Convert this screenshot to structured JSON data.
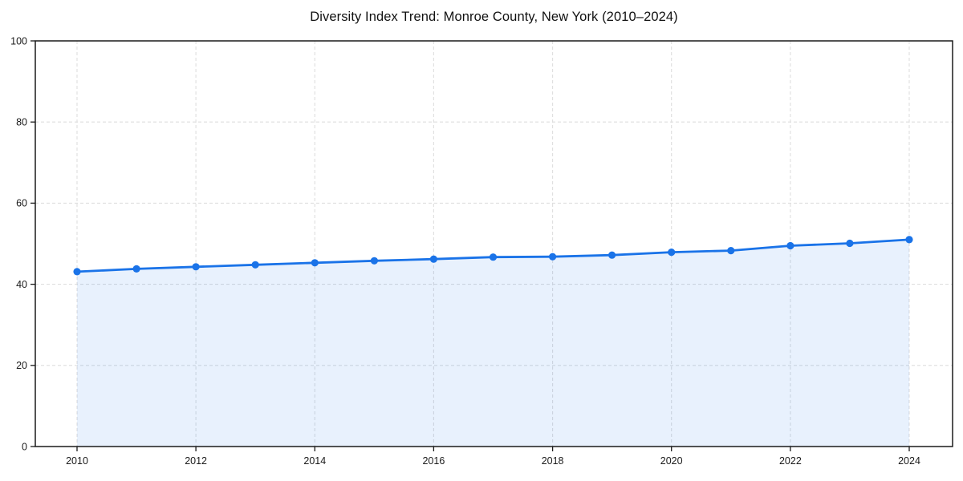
{
  "chart_data": {
    "type": "area",
    "title": "Diversity Index Trend: Monroe County, New York (2010–2024)",
    "xlabel": "",
    "ylabel": "",
    "x": [
      2010,
      2011,
      2012,
      2013,
      2014,
      2015,
      2016,
      2017,
      2018,
      2019,
      2020,
      2021,
      2022,
      2023,
      2024
    ],
    "series": [
      {
        "name": "Diversity Index",
        "values": [
          43.1,
          43.8,
          44.3,
          44.8,
          45.3,
          45.8,
          46.2,
          46.7,
          46.8,
          47.2,
          47.9,
          48.3,
          49.5,
          50.1,
          51.0
        ]
      }
    ],
    "ylim": [
      0,
      100
    ],
    "yticks": [
      0,
      20,
      40,
      60,
      80,
      100
    ],
    "xtick_years": [
      2010,
      2012,
      2014,
      2016,
      2018,
      2020,
      2022,
      2024
    ],
    "grid": "dashed",
    "legend": "none",
    "colors": {
      "line": "#1a73e8",
      "marker": "#1a73e8",
      "fill": "#1a73e8",
      "fill_opacity": 0.1,
      "grid": "#dedede",
      "axis_frame": "#1a1a1a",
      "tick_label": "#1a1a1a",
      "title": "#111111",
      "background": "#ffffff"
    }
  }
}
